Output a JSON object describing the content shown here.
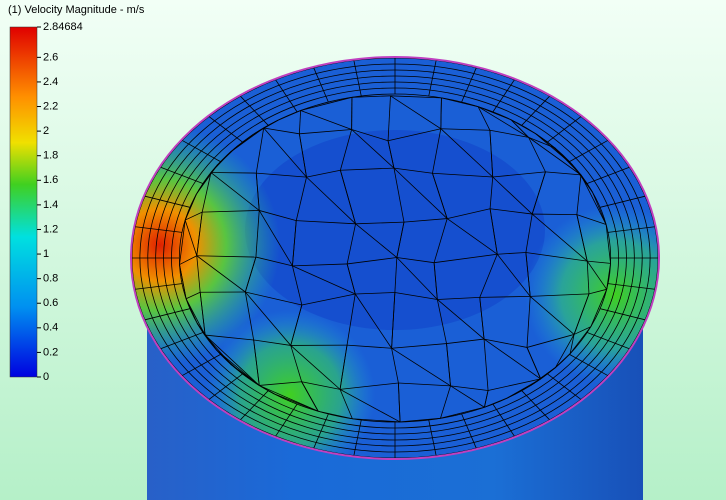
{
  "legend": {
    "title": "(1) Velocity Magnitude - m/s",
    "ticks": [
      2.84684,
      2.6,
      2.4,
      2.2,
      2,
      1.8,
      1.6,
      1.4,
      1.2,
      1,
      0.8,
      0.6,
      0.4,
      0.2,
      0
    ]
  }
}
